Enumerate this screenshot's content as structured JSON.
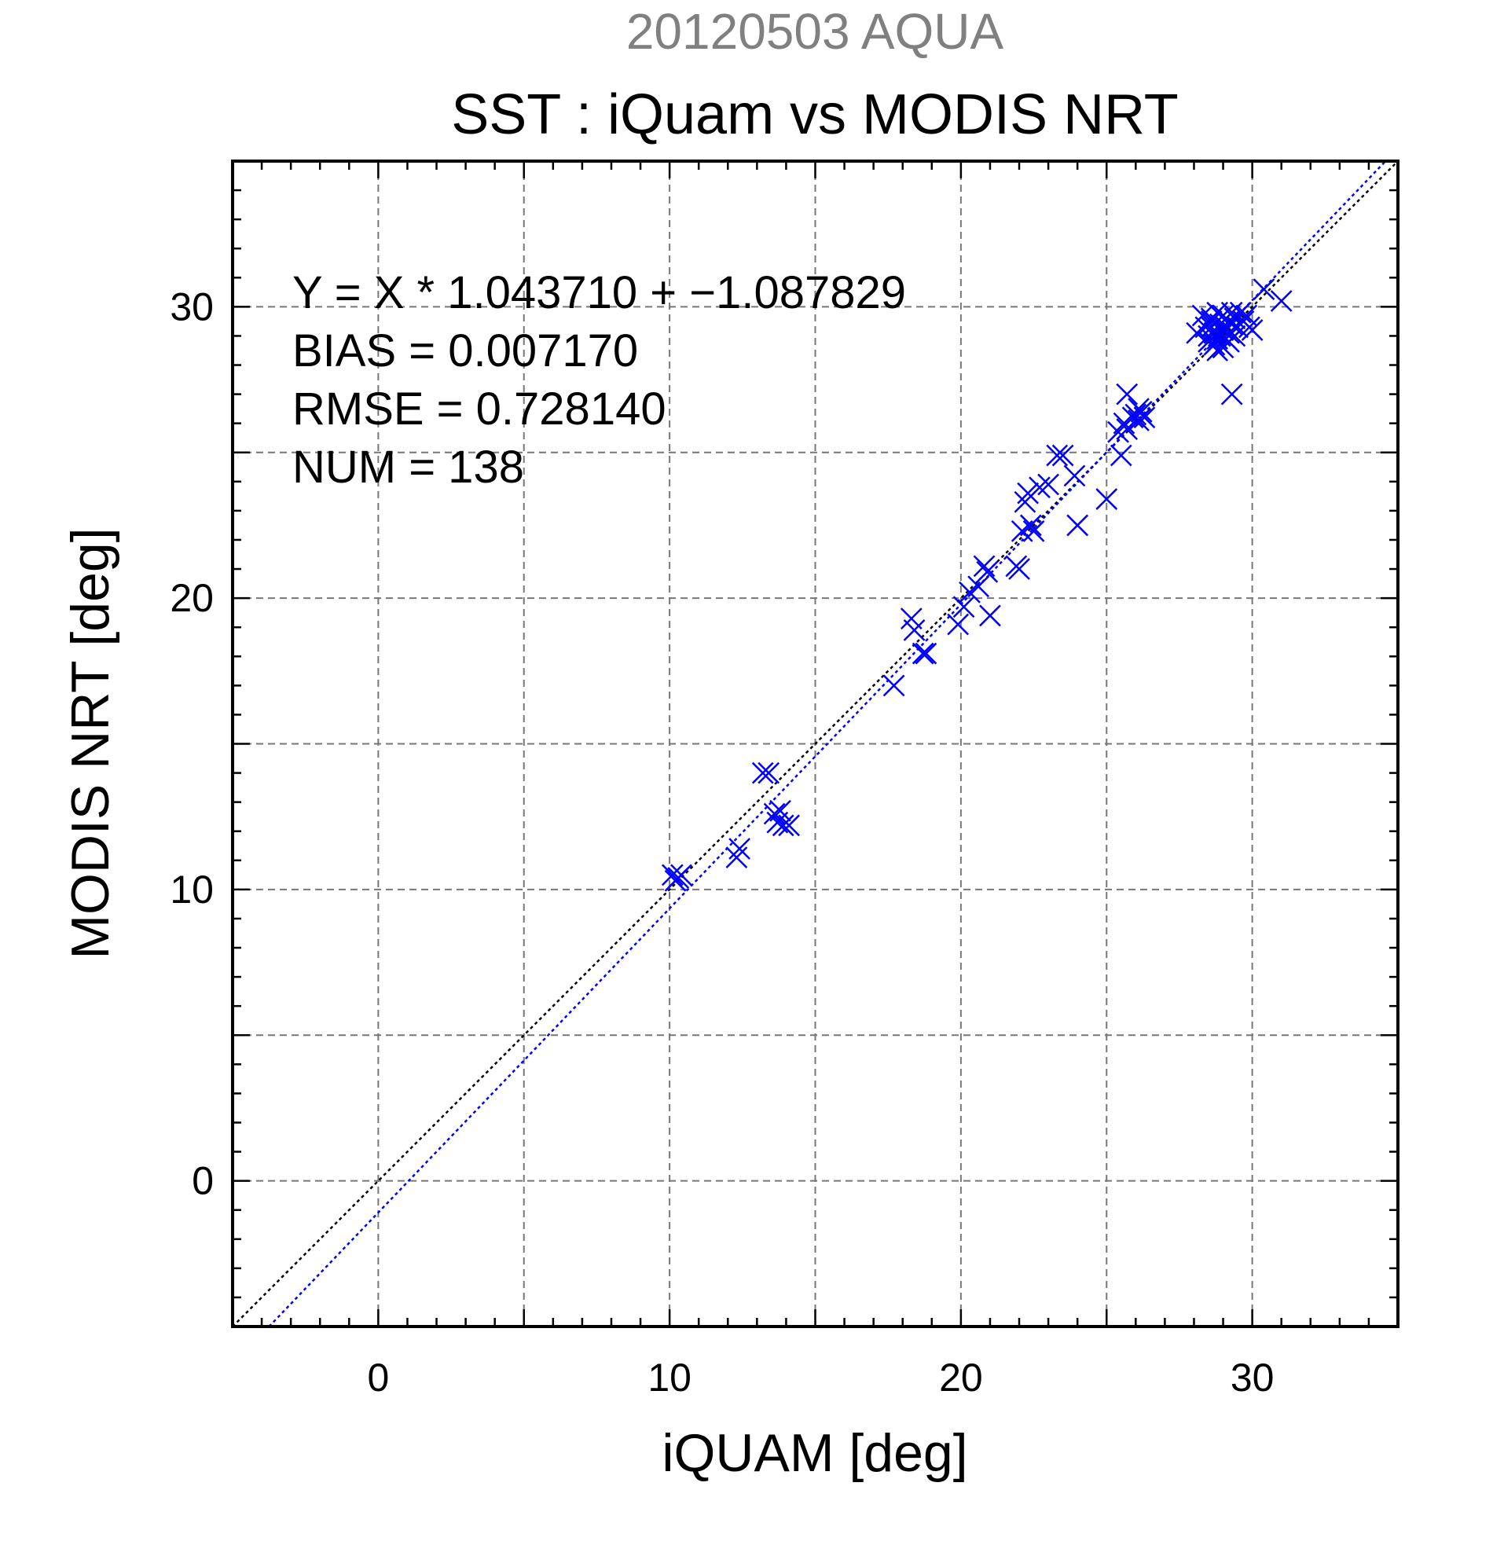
{
  "chart_data": {
    "type": "scatter",
    "supertitle": "20120503 AQUA",
    "title": "SST : iQuam vs MODIS NRT",
    "xlabel": "iQUAM [deg]",
    "ylabel": "MODIS NRT [deg]",
    "xlim": [
      -5,
      35
    ],
    "ylim": [
      -5,
      35
    ],
    "xticks": [
      0,
      10,
      20,
      30
    ],
    "yticks": [
      0,
      10,
      20,
      30
    ],
    "xtick_labels": [
      "0",
      "10",
      "20",
      "30"
    ],
    "ytick_labels": [
      "0",
      "10",
      "20",
      "30"
    ],
    "grid": true,
    "marker": "x",
    "marker_color": "#0000ff",
    "stats": {
      "equation": "Y = X * 1.043710 + −1.087829",
      "bias": "BIAS = 0.007170",
      "rmse": "RMSE = 0.728140",
      "num": "NUM = 138"
    },
    "fit_line": {
      "slope": 1.04371,
      "intercept": -1.087829,
      "color": "#0000ff"
    },
    "reference_line": {
      "slope": 1,
      "intercept": 0,
      "color": "#000000"
    },
    "series": [
      {
        "points": [
          [
            10.1,
            10.5
          ],
          [
            10.3,
            10.4
          ],
          [
            10.2,
            10.3
          ],
          [
            10.4,
            10.5
          ],
          [
            12.3,
            11.1
          ],
          [
            12.4,
            11.4
          ],
          [
            13.2,
            14.0
          ],
          [
            13.4,
            14.0
          ],
          [
            13.6,
            12.6
          ],
          [
            13.8,
            12.7
          ],
          [
            13.7,
            12.3
          ],
          [
            13.9,
            12.2
          ],
          [
            14.1,
            12.2
          ],
          [
            17.7,
            17.0
          ],
          [
            18.3,
            19.3
          ],
          [
            18.4,
            18.9
          ],
          [
            18.7,
            18.1
          ],
          [
            18.8,
            18.1
          ],
          [
            19.9,
            19.1
          ],
          [
            20.1,
            19.7
          ],
          [
            20.3,
            20.2
          ],
          [
            20.6,
            20.4
          ],
          [
            20.8,
            21.1
          ],
          [
            20.9,
            20.9
          ],
          [
            21.0,
            19.4
          ],
          [
            21.9,
            21.1
          ],
          [
            22.0,
            21.0
          ],
          [
            22.1,
            22.3
          ],
          [
            22.2,
            23.3
          ],
          [
            22.3,
            23.6
          ],
          [
            22.4,
            22.5
          ],
          [
            22.5,
            22.3
          ],
          [
            22.7,
            23.8
          ],
          [
            23.0,
            23.9
          ],
          [
            23.3,
            24.9
          ],
          [
            23.5,
            24.9
          ],
          [
            23.9,
            24.2
          ],
          [
            24.0,
            22.5
          ],
          [
            25.0,
            23.4
          ],
          [
            25.4,
            25.7
          ],
          [
            25.5,
            24.9
          ],
          [
            25.6,
            26.0
          ],
          [
            25.7,
            27.0
          ],
          [
            25.7,
            25.8
          ],
          [
            25.9,
            26.2
          ],
          [
            26.0,
            26.3
          ],
          [
            26.1,
            26.1
          ],
          [
            26.2,
            26.4
          ],
          [
            26.3,
            26.2
          ],
          [
            26.1,
            26.5
          ],
          [
            28.1,
            29.1
          ],
          [
            28.3,
            29.7
          ],
          [
            28.4,
            29.3
          ],
          [
            28.5,
            29.0
          ],
          [
            28.5,
            28.8
          ],
          [
            28.6,
            29.6
          ],
          [
            28.6,
            29.3
          ],
          [
            28.7,
            28.7
          ],
          [
            28.7,
            29.1
          ],
          [
            28.8,
            28.5
          ],
          [
            28.8,
            29.8
          ],
          [
            28.9,
            29.4
          ],
          [
            28.9,
            29.0
          ],
          [
            29.0,
            28.6
          ],
          [
            29.0,
            29.7
          ],
          [
            29.1,
            29.3
          ],
          [
            29.1,
            28.9
          ],
          [
            29.2,
            29.5
          ],
          [
            29.2,
            29.1
          ],
          [
            29.3,
            29.8
          ],
          [
            29.3,
            29.4
          ],
          [
            29.3,
            27.0
          ],
          [
            29.4,
            29.6
          ],
          [
            29.5,
            29.3
          ],
          [
            29.6,
            29.8
          ],
          [
            29.7,
            29.5
          ],
          [
            29.8,
            29.7
          ],
          [
            29.9,
            29.3
          ],
          [
            30.0,
            29.2
          ],
          [
            28.6,
            29.5
          ],
          [
            28.8,
            28.9
          ],
          [
            29.0,
            29.2
          ],
          [
            29.2,
            28.8
          ],
          [
            29.4,
            29.0
          ],
          [
            30.4,
            30.6
          ],
          [
            31.0,
            30.2
          ]
        ]
      }
    ]
  }
}
